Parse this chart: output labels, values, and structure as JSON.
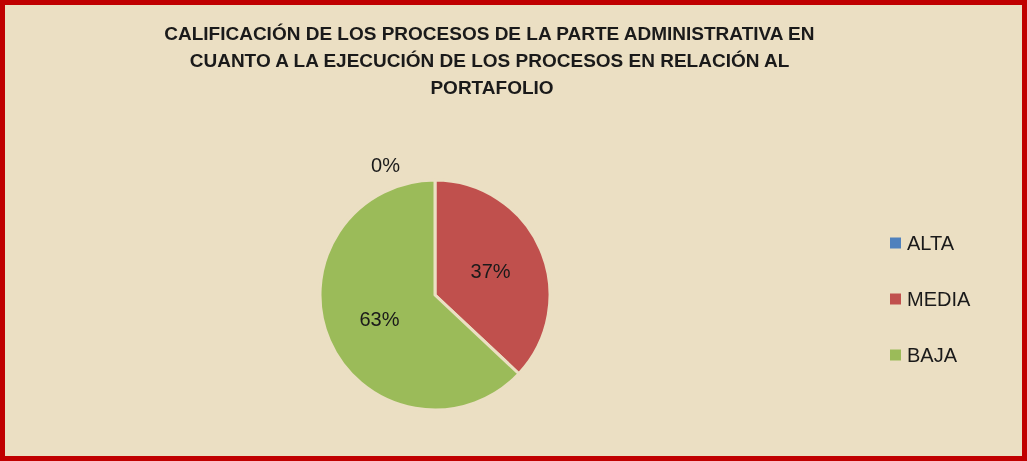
{
  "chart_data": {
    "type": "pie",
    "title": "CALIFICACIÓN DE LOS PROCESOS DE LA PARTE ADMINISTRATIVA EN CUANTO A LA EJECUCIÓN DE LOS PROCESOS EN RELACIÓN AL PORTAFOLIO",
    "categories": [
      "ALTA",
      "MEDIA",
      "BAJA"
    ],
    "values": [
      0,
      37,
      63
    ],
    "colors": [
      "#4f81bd",
      "#c0504d",
      "#9bbb59"
    ],
    "value_labels": [
      "0%",
      "37%",
      "63%"
    ],
    "legend": "right"
  }
}
